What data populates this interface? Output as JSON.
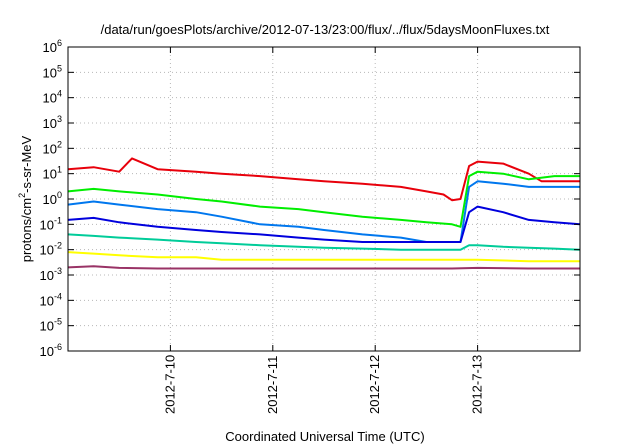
{
  "chart_data": {
    "type": "line",
    "title": "/data/run/goesPlots/archive/2012-07-13/23:00/flux/../flux/5daysMoonFluxes.txt",
    "xlabel": "Coordinated Universal Time (UTC)",
    "ylabel": {
      "base": "protons/cm",
      "sup": "2",
      "rest": "-s-sr-MeV"
    },
    "x_scale": "time",
    "xlim": [
      "2012-07-09T00:00",
      "2012-07-14T00:00"
    ],
    "x_ticks": [
      "2012-7-10",
      "2012-7-11",
      "2012-7-12",
      "2012-7-13"
    ],
    "y_scale": "log",
    "ylim": [
      1e-06,
      1000000.0
    ],
    "y_ticks": [
      {
        "base": "10",
        "exp": "-6"
      },
      {
        "base": "10",
        "exp": "-5"
      },
      {
        "base": "10",
        "exp": "-4"
      },
      {
        "base": "10",
        "exp": "-3"
      },
      {
        "base": "10",
        "exp": "-2"
      },
      {
        "base": "10",
        "exp": "-1"
      },
      {
        "base": "10",
        "exp": "0"
      },
      {
        "base": "10",
        "exp": "1"
      },
      {
        "base": "10",
        "exp": "2"
      },
      {
        "base": "10",
        "exp": "3"
      },
      {
        "base": "10",
        "exp": "4"
      },
      {
        "base": "10",
        "exp": "5"
      },
      {
        "base": "10",
        "exp": "6"
      }
    ],
    "grid": true,
    "legend": "none",
    "series": [
      {
        "color": "#e8000b",
        "x": [
          "2012-07-09T00:00",
          "2012-07-09T06:00",
          "2012-07-09T12:00",
          "2012-07-09T15:00",
          "2012-07-09T21:00",
          "2012-07-10T06:00",
          "2012-07-10T12:00",
          "2012-07-10T21:00",
          "2012-07-11T06:00",
          "2012-07-11T12:00",
          "2012-07-11T21:00",
          "2012-07-12T06:00",
          "2012-07-12T12:00",
          "2012-07-12T16:00",
          "2012-07-12T18:00",
          "2012-07-12T20:00",
          "2012-07-12T22:00",
          "2012-07-13T00:00",
          "2012-07-13T06:00",
          "2012-07-13T12:00",
          "2012-07-13T15:00",
          "2012-07-13T21:00",
          "2012-07-14T00:00"
        ],
        "y": [
          15,
          18,
          12,
          40,
          15,
          12,
          10,
          8,
          6,
          5,
          4,
          3,
          2,
          1.5,
          0.9,
          1.0,
          20,
          30,
          25,
          10,
          5,
          5,
          5
        ]
      },
      {
        "color": "#00ee00",
        "x": [
          "2012-07-09T00:00",
          "2012-07-09T06:00",
          "2012-07-09T12:00",
          "2012-07-09T21:00",
          "2012-07-10T06:00",
          "2012-07-10T12:00",
          "2012-07-10T21:00",
          "2012-07-11T06:00",
          "2012-07-11T12:00",
          "2012-07-11T21:00",
          "2012-07-12T06:00",
          "2012-07-12T12:00",
          "2012-07-12T18:00",
          "2012-07-12T20:00",
          "2012-07-12T22:00",
          "2012-07-13T00:00",
          "2012-07-13T06:00",
          "2012-07-13T12:00",
          "2012-07-13T18:00",
          "2012-07-14T00:00"
        ],
        "y": [
          2,
          2.5,
          2,
          1.5,
          1,
          0.8,
          0.5,
          0.4,
          0.3,
          0.2,
          0.15,
          0.12,
          0.1,
          0.08,
          8,
          12,
          10,
          6,
          8,
          8
        ]
      },
      {
        "color": "#0077ee",
        "x": [
          "2012-07-09T00:00",
          "2012-07-09T06:00",
          "2012-07-09T12:00",
          "2012-07-09T21:00",
          "2012-07-10T06:00",
          "2012-07-10T12:00",
          "2012-07-10T21:00",
          "2012-07-11T06:00",
          "2012-07-11T12:00",
          "2012-07-11T21:00",
          "2012-07-12T06:00",
          "2012-07-12T12:00",
          "2012-07-12T18:00",
          "2012-07-12T20:00",
          "2012-07-12T22:00",
          "2012-07-13T00:00",
          "2012-07-13T06:00",
          "2012-07-13T12:00",
          "2012-07-13T18:00",
          "2012-07-14T00:00"
        ],
        "y": [
          0.6,
          0.8,
          0.6,
          0.4,
          0.3,
          0.2,
          0.1,
          0.08,
          0.06,
          0.04,
          0.03,
          0.02,
          0.02,
          0.02,
          3,
          5,
          4,
          3,
          3,
          3
        ]
      },
      {
        "color": "#0000dd",
        "x": [
          "2012-07-09T00:00",
          "2012-07-09T06:00",
          "2012-07-09T12:00",
          "2012-07-09T21:00",
          "2012-07-10T06:00",
          "2012-07-10T12:00",
          "2012-07-10T21:00",
          "2012-07-11T06:00",
          "2012-07-11T12:00",
          "2012-07-11T21:00",
          "2012-07-12T06:00",
          "2012-07-12T12:00",
          "2012-07-12T18:00",
          "2012-07-12T20:00",
          "2012-07-12T22:00",
          "2012-07-13T00:00",
          "2012-07-13T06:00",
          "2012-07-13T12:00",
          "2012-07-13T18:00",
          "2012-07-14T00:00"
        ],
        "y": [
          0.15,
          0.18,
          0.12,
          0.08,
          0.06,
          0.05,
          0.04,
          0.03,
          0.025,
          0.02,
          0.02,
          0.02,
          0.02,
          0.02,
          0.3,
          0.5,
          0.3,
          0.15,
          0.12,
          0.1
        ]
      },
      {
        "color": "#00cc99",
        "x": [
          "2012-07-09T00:00",
          "2012-07-09T06:00",
          "2012-07-09T12:00",
          "2012-07-09T21:00",
          "2012-07-10T06:00",
          "2012-07-10T12:00",
          "2012-07-10T21:00",
          "2012-07-11T06:00",
          "2012-07-11T12:00",
          "2012-07-11T21:00",
          "2012-07-12T06:00",
          "2012-07-12T12:00",
          "2012-07-12T18:00",
          "2012-07-12T20:00",
          "2012-07-12T22:00",
          "2012-07-13T00:00",
          "2012-07-13T06:00",
          "2012-07-13T12:00",
          "2012-07-13T18:00",
          "2012-07-14T00:00"
        ],
        "y": [
          0.04,
          0.035,
          0.03,
          0.025,
          0.02,
          0.018,
          0.015,
          0.013,
          0.012,
          0.011,
          0.01,
          0.01,
          0.01,
          0.01,
          0.015,
          0.015,
          0.013,
          0.012,
          0.011,
          0.01
        ]
      },
      {
        "color": "#ffff00",
        "x": [
          "2012-07-09T00:00",
          "2012-07-09T06:00",
          "2012-07-09T12:00",
          "2012-07-09T21:00",
          "2012-07-10T06:00",
          "2012-07-10T12:00",
          "2012-07-10T21:00",
          "2012-07-11T06:00",
          "2012-07-11T12:00",
          "2012-07-11T21:00",
          "2012-07-12T06:00",
          "2012-07-12T12:00",
          "2012-07-12T18:00",
          "2012-07-13T00:00",
          "2012-07-13T12:00",
          "2012-07-14T00:00"
        ],
        "y": [
          0.008,
          0.007,
          0.006,
          0.005,
          0.005,
          0.004,
          0.004,
          0.004,
          0.004,
          0.004,
          0.004,
          0.004,
          0.004,
          0.004,
          0.0035,
          0.0035
        ]
      },
      {
        "color": "#993366",
        "x": [
          "2012-07-09T00:00",
          "2012-07-09T06:00",
          "2012-07-09T12:00",
          "2012-07-09T21:00",
          "2012-07-10T06:00",
          "2012-07-10T12:00",
          "2012-07-10T21:00",
          "2012-07-11T06:00",
          "2012-07-11T12:00",
          "2012-07-11T21:00",
          "2012-07-12T06:00",
          "2012-07-12T12:00",
          "2012-07-12T18:00",
          "2012-07-13T00:00",
          "2012-07-13T12:00",
          "2012-07-14T00:00"
        ],
        "y": [
          0.002,
          0.0022,
          0.0019,
          0.0018,
          0.0018,
          0.0018,
          0.0018,
          0.0018,
          0.0018,
          0.0018,
          0.0018,
          0.0018,
          0.0018,
          0.0019,
          0.0018,
          0.0018
        ]
      }
    ]
  }
}
